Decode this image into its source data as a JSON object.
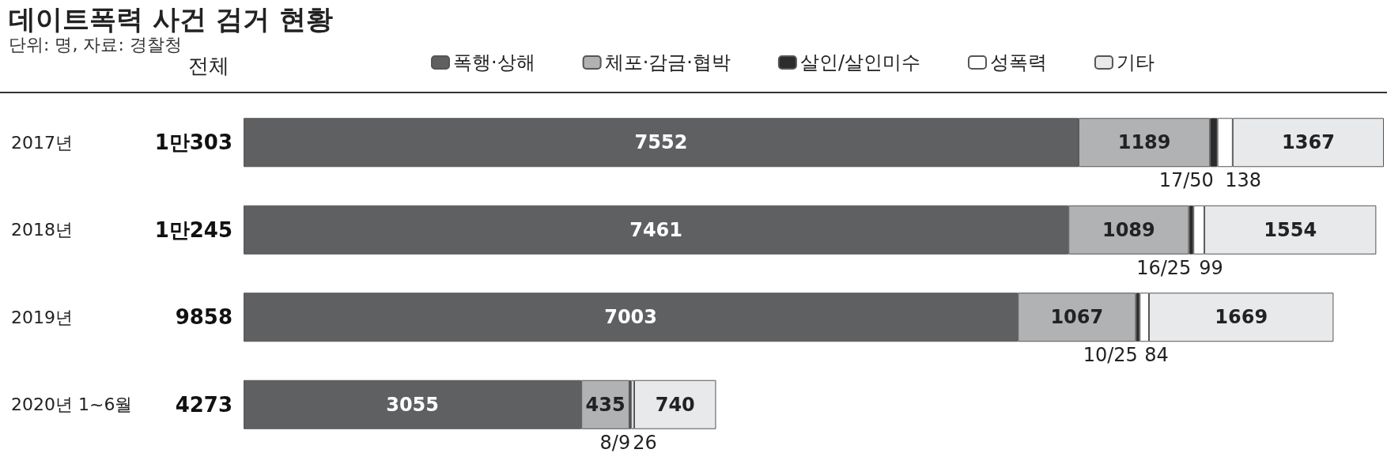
{
  "chart_data": {
    "type": "bar",
    "title": "데이트폭력 사건 검거 현황",
    "subtitle": "단위: 명, 자료: 경찰청",
    "orientation": "horizontal",
    "stacked": true,
    "legend": "top",
    "categories": [
      "2017년",
      "2018년",
      "2019년",
      "2020년 1~6월"
    ],
    "totals": [
      "1만303",
      "1만245",
      "9858",
      "4273"
    ],
    "annotations": [
      "전체"
    ],
    "series": [
      {
        "name": "폭행·상해",
        "color": "#5f6062",
        "values": [
          7552,
          7461,
          7003,
          3055
        ],
        "value_labels": [
          "7552",
          "7461",
          "7003",
          "3055"
        ]
      },
      {
        "name": "체포·감금·협박",
        "color": "#b1b2b4",
        "values": [
          1189,
          1089,
          1067,
          435
        ],
        "value_labels": [
          "1189",
          "1089",
          "1067",
          "435"
        ]
      },
      {
        "name": "살인/살인미수",
        "color": "#2c2c2c",
        "values": [
          67,
          41,
          35,
          17
        ],
        "value_labels": [
          "17/50",
          "16/25",
          "10/25",
          "8/9"
        ]
      },
      {
        "name": "성폭력",
        "color": "#ffffff",
        "values": [
          138,
          99,
          84,
          26
        ],
        "value_labels": [
          "138",
          "99",
          "84",
          "26"
        ]
      },
      {
        "name": "기타",
        "color": "#e8e9ea",
        "values": [
          1367,
          1554,
          1669,
          740
        ],
        "value_labels": [
          "1367",
          "1554",
          "1669",
          "740"
        ]
      }
    ]
  }
}
